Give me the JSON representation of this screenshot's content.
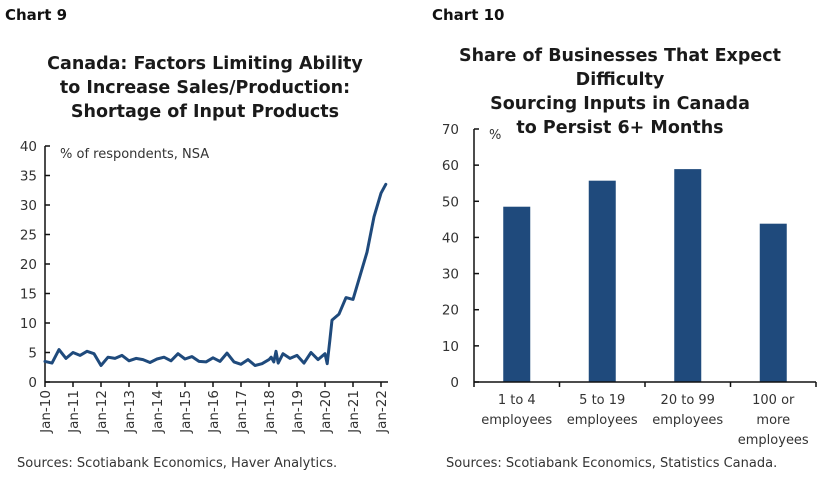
{
  "colors": {
    "series": "#1f4a7c",
    "axis": "#111111",
    "text": "#333333"
  },
  "chart_data": [
    {
      "type": "line",
      "label": "Chart 9",
      "title": [
        "Canada: Factors Limiting Ability",
        "to Increase Sales/Production:",
        "Shortage of Input Products"
      ],
      "ylabel": "% of respondents, NSA",
      "ylim": [
        0,
        40
      ],
      "yticks": [
        "0",
        "5",
        "10",
        "15",
        "20",
        "25",
        "30",
        "35",
        "40"
      ],
      "xlim": [
        2010.0,
        2022.25
      ],
      "xticks": [
        "Jan-10",
        "Jan-11",
        "Jan-12",
        "Jan-13",
        "Jan-14",
        "Jan-15",
        "Jan-16",
        "Jan-17",
        "Jan-18",
        "Jan-19",
        "Jan-20",
        "Jan-21",
        "Jan-22"
      ],
      "grid": false,
      "series": [
        {
          "name": "Shortage of input products",
          "x": [
            2010.0,
            2010.25,
            2010.5,
            2010.75,
            2011.0,
            2011.25,
            2011.5,
            2011.75,
            2012.0,
            2012.25,
            2012.5,
            2012.75,
            2013.0,
            2013.25,
            2013.5,
            2013.75,
            2014.0,
            2014.25,
            2014.5,
            2014.75,
            2015.0,
            2015.25,
            2015.5,
            2015.75,
            2016.0,
            2016.25,
            2016.5,
            2016.75,
            2017.0,
            2017.25,
            2017.5,
            2017.75,
            2018.0,
            2018.08,
            2018.17,
            2018.25,
            2018.33,
            2018.5,
            2018.75,
            2019.0,
            2019.25,
            2019.5,
            2019.75,
            2020.0,
            2020.08,
            2020.17,
            2020.25,
            2020.5,
            2020.75,
            2021.0,
            2021.25,
            2021.5,
            2021.75,
            2022.0,
            2022.17
          ],
          "values": [
            3.5,
            3.2,
            5.5,
            4.0,
            5.0,
            4.5,
            5.2,
            4.8,
            2.8,
            4.2,
            4.0,
            4.5,
            3.6,
            4.0,
            3.8,
            3.3,
            3.9,
            4.2,
            3.6,
            4.8,
            3.9,
            4.3,
            3.5,
            3.4,
            4.1,
            3.5,
            4.9,
            3.4,
            3.0,
            3.8,
            2.8,
            3.1,
            3.8,
            4.2,
            3.4,
            5.2,
            3.2,
            4.8,
            4.0,
            4.5,
            3.2,
            5.0,
            3.8,
            4.8,
            3.1,
            7.0,
            10.5,
            11.5,
            14.3,
            14.0,
            18.0,
            22.0,
            28.0,
            32.0,
            33.5
          ]
        }
      ],
      "source": "Sources: Scotiabank Economics, Haver Analytics."
    },
    {
      "type": "bar",
      "label": "Chart 10",
      "title": [
        "Share of Businesses That Expect Difficulty",
        "Sourcing Inputs in Canada",
        "to Persist 6+ Months"
      ],
      "ylabel": "%",
      "ylim": [
        0,
        70
      ],
      "yticks": [
        "0",
        "10",
        "20",
        "30",
        "40",
        "50",
        "60",
        "70"
      ],
      "grid": false,
      "categories": [
        [
          "1 to 4",
          "employees"
        ],
        [
          "5 to 19",
          "employees"
        ],
        [
          "20 to 99",
          "employees"
        ],
        [
          "100 or",
          "more",
          "employees"
        ]
      ],
      "values": [
        48.5,
        55.7,
        58.9,
        43.8
      ],
      "source": "Sources: Scotiabank Economics, Statistics Canada."
    }
  ]
}
